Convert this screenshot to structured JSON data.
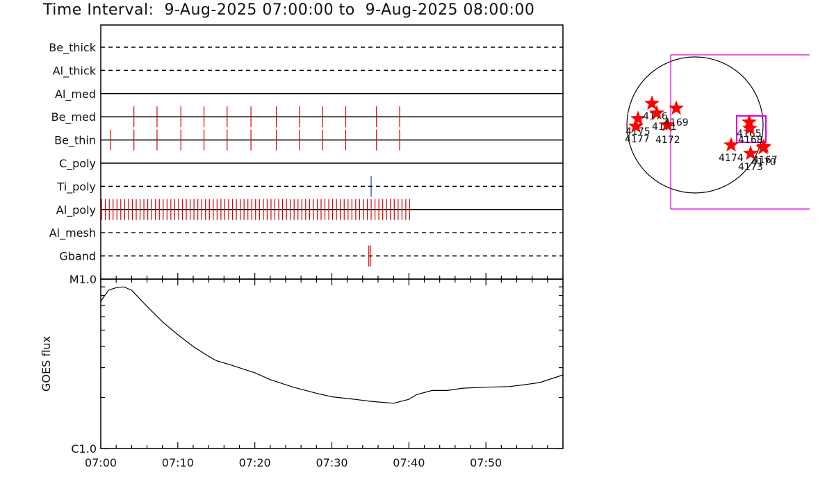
{
  "title": "Time Interval:  9-Aug-2025 07:00:00 to  9-Aug-2025 08:00:00",
  "colors": {
    "line": "#000000",
    "exposure": "#d00000",
    "ti_poly": "#1a3aa0",
    "fov": "#e000e0",
    "star": "#ff0000"
  },
  "chart_data": [
    {
      "type": "timeline",
      "x_range_minutes": [
        0,
        60
      ],
      "x_tick_labels": [
        "07:00",
        "07:10",
        "07:20",
        "07:30",
        "07:40",
        "07:50"
      ],
      "x_tick_minutes": [
        0,
        10,
        20,
        30,
        40,
        50
      ],
      "channels": [
        {
          "name": "Be_thick",
          "line": "dashed",
          "exposures_min": []
        },
        {
          "name": "Al_thick",
          "line": "dashed",
          "exposures_min": []
        },
        {
          "name": "Al_med",
          "line": "solid",
          "exposures_min": []
        },
        {
          "name": "Be_med",
          "line": "solid",
          "exposures_min": [
            4.3,
            7.3,
            10.4,
            13.4,
            16.4,
            19.5,
            22.8,
            25.8,
            28.8,
            31.8,
            35.8,
            38.8
          ]
        },
        {
          "name": "Be_thin",
          "line": "solid",
          "exposures_min": [
            1.3,
            4.3,
            7.3,
            10.4,
            13.4,
            16.4,
            19.5,
            22.8,
            25.8,
            28.8,
            31.8,
            35.8,
            38.8
          ]
        },
        {
          "name": "C_poly",
          "line": "solid",
          "exposures_min": []
        },
        {
          "name": "Ti_poly",
          "line": "dashed",
          "exposures_min": [
            35.1
          ]
        },
        {
          "name": "Al_poly",
          "line": "solid",
          "exposures_min": "dense",
          "exposure_range_min": [
            0.1,
            40.1
          ],
          "exposure_step_min": 0.5
        },
        {
          "name": "Al_mesh",
          "line": "dashed",
          "exposures_min": []
        },
        {
          "name": "Gband",
          "line": "dashed",
          "exposures_min": [
            34.8,
            35.0
          ]
        }
      ]
    },
    {
      "type": "line",
      "ylabel": "GOES flux",
      "y_scale": "log",
      "y_tick_labels": [
        "M1.0",
        "C1.0"
      ],
      "y_range_wm2": [
        1e-06,
        1e-05
      ],
      "x_range_minutes": [
        0,
        60
      ],
      "x_tick_labels": [
        "07:00",
        "07:10",
        "07:20",
        "07:30",
        "07:40",
        "07:50"
      ],
      "series": [
        {
          "x": [
            0,
            1,
            2,
            3,
            4,
            6,
            8,
            10,
            12,
            14,
            15,
            17,
            20,
            22,
            25,
            28,
            30,
            33,
            35,
            38,
            40,
            41,
            43,
            45,
            47,
            50,
            53,
            55,
            57,
            60
          ],
          "y": [
            7.4e-06,
            8.6e-06,
            8.9e-06,
            9e-06,
            8.6e-06,
            6.9e-06,
            5.6e-06,
            4.7e-06,
            4e-06,
            3.5e-06,
            3.3e-06,
            3.1e-06,
            2.8e-06,
            2.55e-06,
            2.3e-06,
            2.12e-06,
            2.02e-06,
            1.95e-06,
            1.9e-06,
            1.85e-06,
            1.95e-06,
            2.08e-06,
            2.2e-06,
            2.2e-06,
            2.27e-06,
            2.3e-06,
            2.32e-06,
            2.38e-06,
            2.45e-06,
            2.72e-06
          ]
        }
      ]
    }
  ],
  "solar_map": {
    "regions": [
      {
        "label": "4175"
      },
      {
        "label": "4176"
      },
      {
        "label": "4171"
      },
      {
        "label": "4177"
      },
      {
        "label": "4172"
      },
      {
        "label": "4169"
      },
      {
        "label": "4165"
      },
      {
        "label": "4168"
      },
      {
        "label": "4174"
      },
      {
        "label": "4173"
      },
      {
        "label": "4170"
      },
      {
        "label": "4167"
      }
    ]
  }
}
